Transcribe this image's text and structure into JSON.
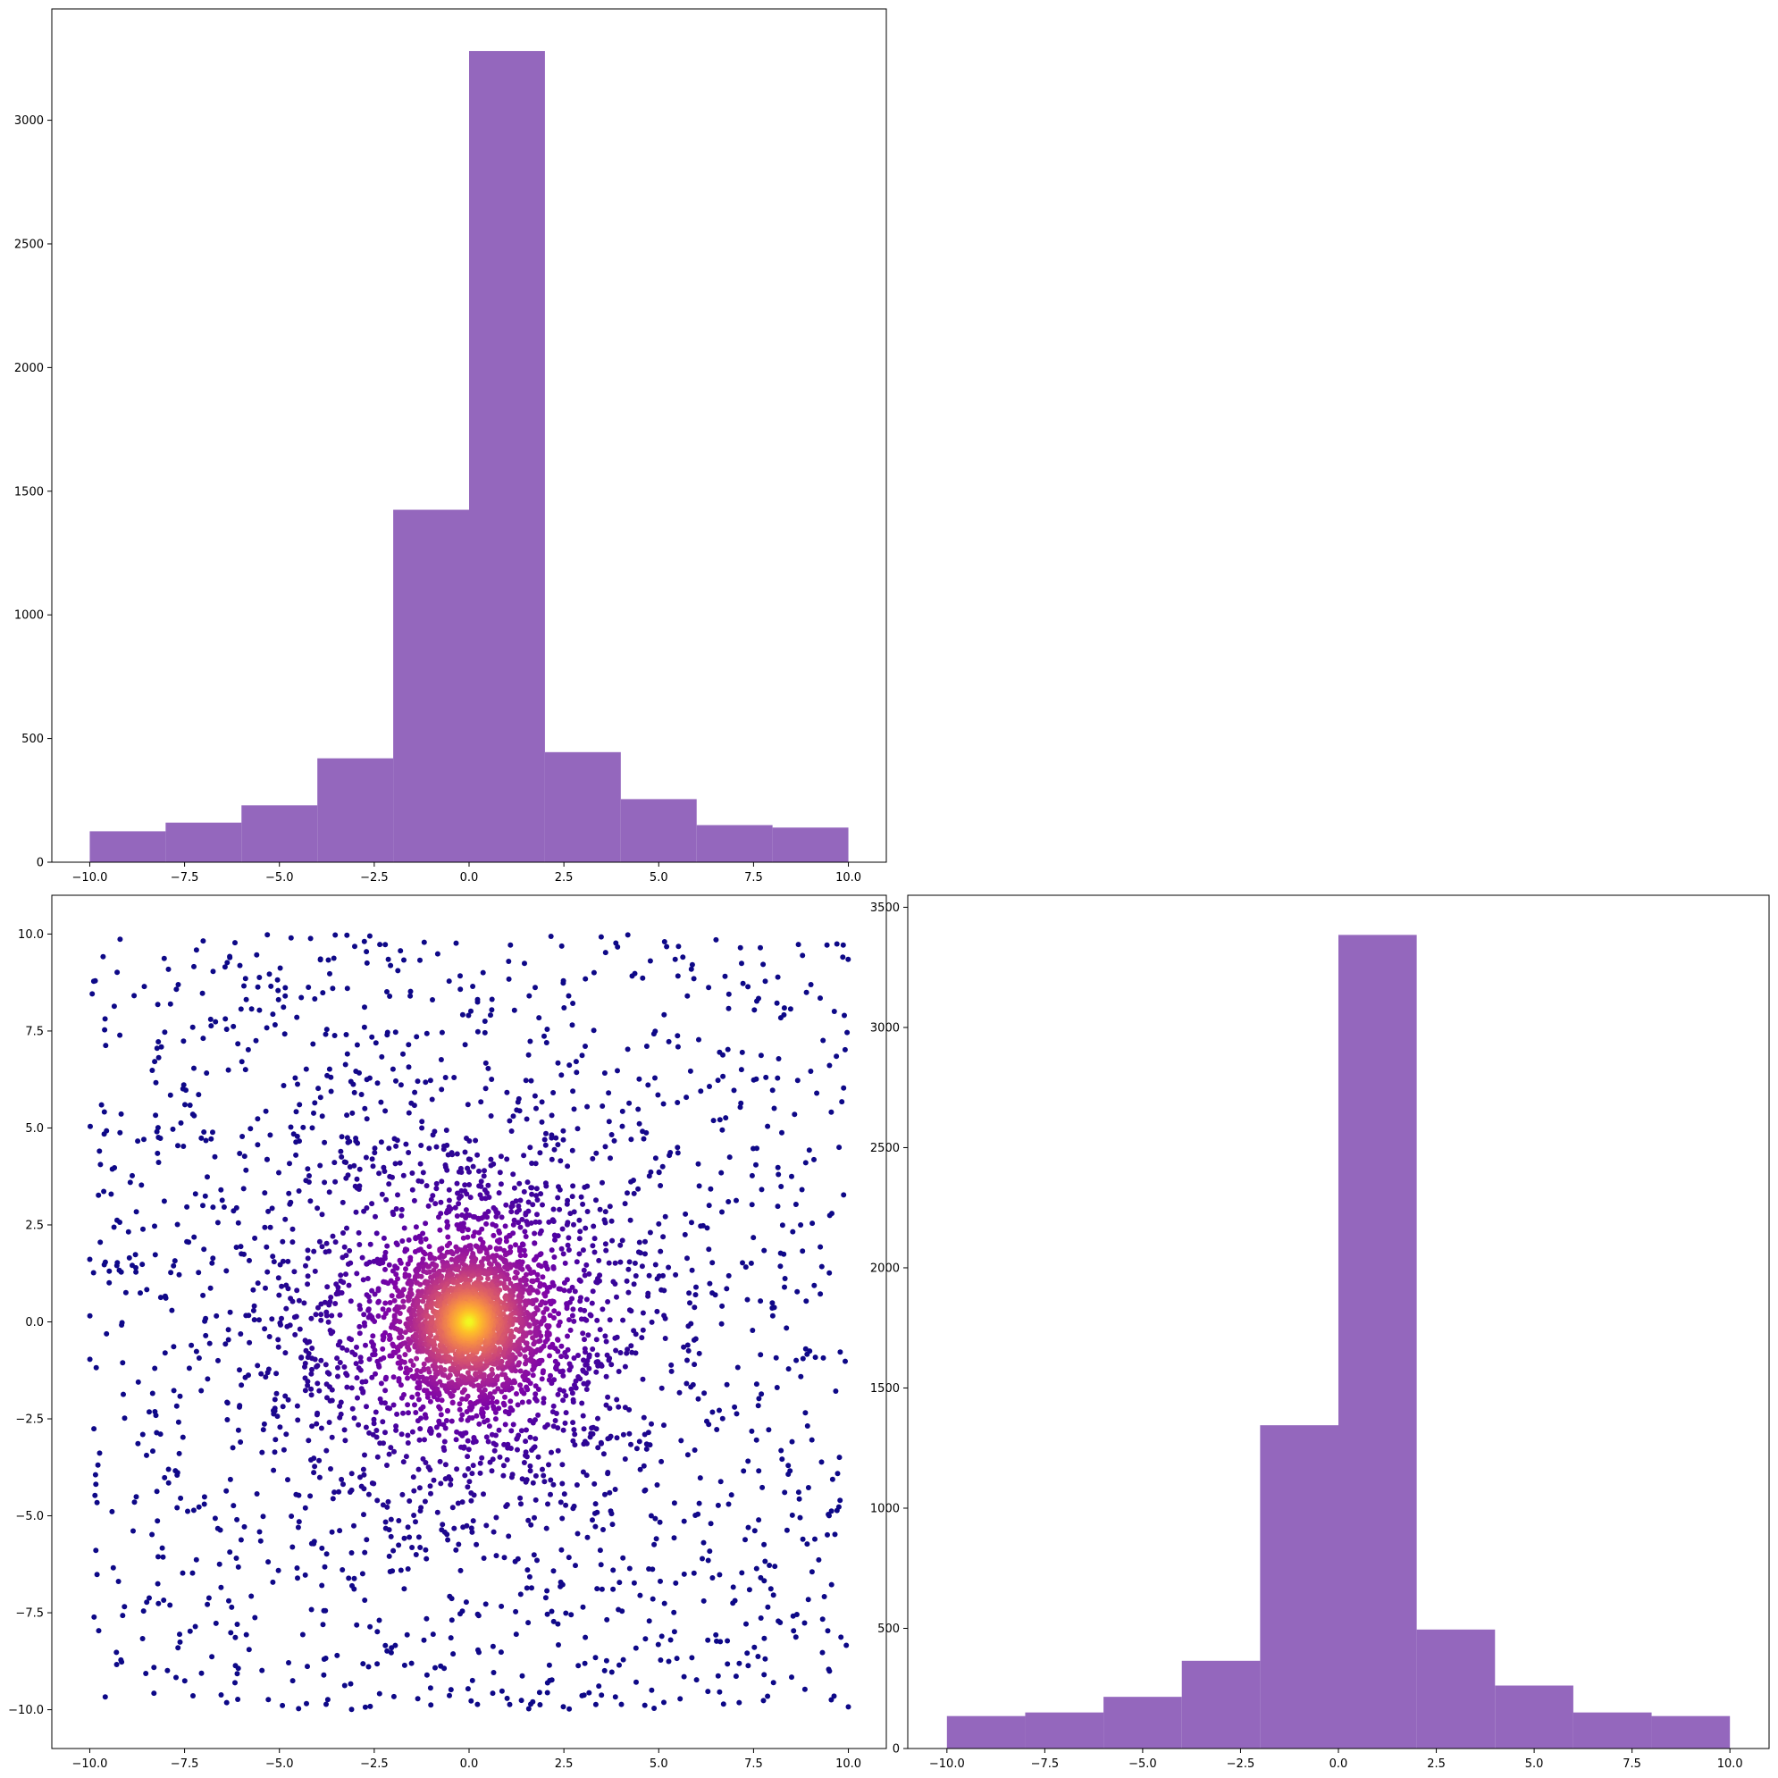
{
  "figure": {
    "colors": {
      "hist_bar": "#9467bd",
      "scatter_colormap": "plasma",
      "axes_frame": "#000000",
      "background": "#ffffff"
    }
  },
  "chart_data": [
    {
      "id": "top-histogram",
      "type": "bar",
      "title": "",
      "xlabel": "",
      "ylabel": "",
      "bin_edges": [
        -10,
        -8,
        -6,
        -4,
        -2,
        0,
        2,
        4,
        6,
        8,
        10
      ],
      "values": [
        125,
        160,
        230,
        420,
        1425,
        3280,
        445,
        255,
        150,
        140
      ],
      "xlim": [
        -11,
        11
      ],
      "ylim": [
        0,
        3450
      ],
      "xticks": [
        -10,
        -7.5,
        -5,
        -2.5,
        0,
        2.5,
        5,
        7.5,
        10
      ],
      "xtick_labels": [
        "−10.0",
        "−7.5",
        "−5.0",
        "−2.5",
        "0.0",
        "2.5",
        "5.0",
        "7.5",
        "10.0"
      ],
      "yticks": [
        0,
        500,
        1000,
        1500,
        2000,
        2500,
        3000
      ],
      "ytick_labels": [
        "0",
        "500",
        "1000",
        "1500",
        "2000",
        "2500",
        "3000"
      ],
      "grid": false,
      "color": "#9467bd"
    },
    {
      "id": "scatter-plot",
      "type": "scatter",
      "title": "",
      "xlabel": "",
      "ylabel": "",
      "xlim": [
        -11,
        11
      ],
      "ylim": [
        -11,
        11
      ],
      "xticks": [
        -10,
        -7.5,
        -5,
        -2.5,
        0,
        2.5,
        5,
        7.5,
        10
      ],
      "xtick_labels": [
        "−10.0",
        "−7.5",
        "−5.0",
        "−2.5",
        "0.0",
        "2.5",
        "5.0",
        "7.5",
        "10.0"
      ],
      "yticks": [
        -10,
        -7.5,
        -5,
        -2.5,
        0,
        2.5,
        5,
        7.5,
        10
      ],
      "ytick_labels": [
        "−10.0",
        "−7.5",
        "−5.0",
        "−2.5",
        "0.0",
        "2.5",
        "5.0",
        "7.5",
        "10.0"
      ],
      "grid": false,
      "colormap": "plasma",
      "color_encodes": "distance from origin (yellow at center, dark blue at edges)",
      "point_distribution": "dense cluster centered at (0, 0) fading into uniform scatter over [-10, 10] x [-10, 10]"
    },
    {
      "id": "right-histogram",
      "type": "bar",
      "title": "",
      "xlabel": "",
      "ylabel": "",
      "bin_edges": [
        -10,
        -8,
        -6,
        -4,
        -2,
        0,
        2,
        4,
        6,
        8,
        10
      ],
      "values": [
        135,
        150,
        215,
        365,
        1345,
        3385,
        495,
        262,
        150,
        135
      ],
      "xlim": [
        -11,
        11
      ],
      "ylim": [
        0,
        3550
      ],
      "xticks": [
        -10,
        -7.5,
        -5,
        -2.5,
        0,
        2.5,
        5,
        7.5,
        10
      ],
      "xtick_labels": [
        "−10.0",
        "−7.5",
        "−5.0",
        "−2.5",
        "0.0",
        "2.5",
        "5.0",
        "7.5",
        "10.0"
      ],
      "yticks": [
        0,
        500,
        1000,
        1500,
        2000,
        2500,
        3000,
        3500
      ],
      "ytick_labels": [
        "0",
        "500",
        "1000",
        "1500",
        "2000",
        "2500",
        "3000",
        "3500"
      ],
      "grid": false,
      "color": "#9467bd"
    }
  ]
}
